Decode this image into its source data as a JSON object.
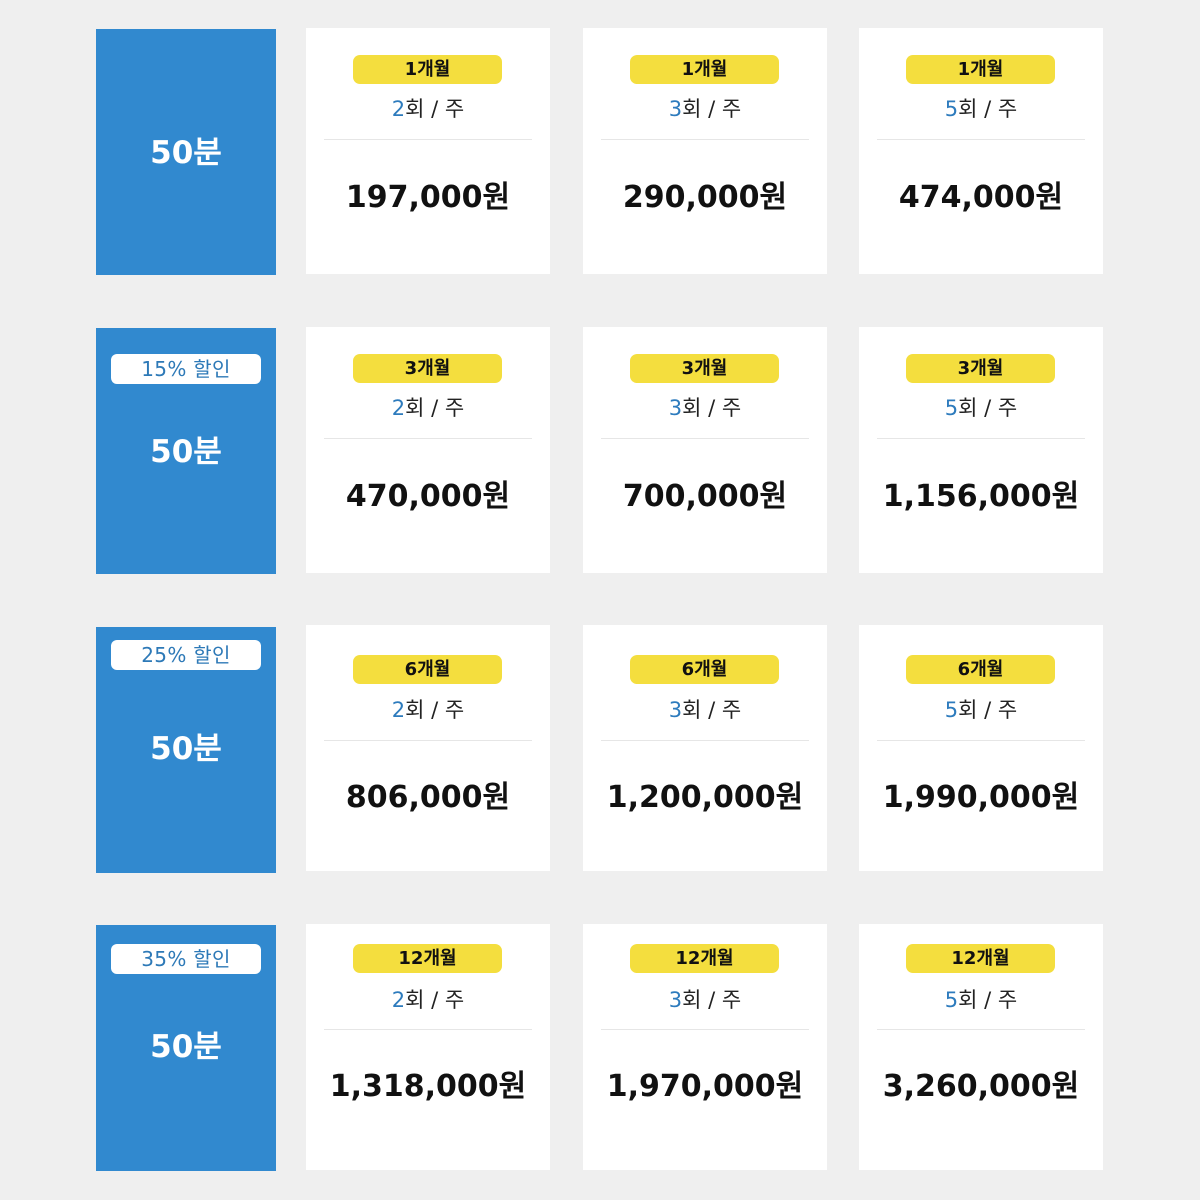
{
  "rows": [
    {
      "discount": "",
      "duration": "50분",
      "cards": [
        {
          "period": "1개월",
          "frequency_num": "2",
          "frequency_rest": "회 / 주",
          "price": "197,000원"
        },
        {
          "period": "1개월",
          "frequency_num": "3",
          "frequency_rest": "회 / 주",
          "price": "290,000원"
        },
        {
          "period": "1개월",
          "frequency_num": "5",
          "frequency_rest": "회 / 주",
          "price": "474,000원"
        }
      ]
    },
    {
      "discount": "15% 할인",
      "duration": "50분",
      "cards": [
        {
          "period": "3개월",
          "frequency_num": "2",
          "frequency_rest": "회 / 주",
          "price": "470,000원"
        },
        {
          "period": "3개월",
          "frequency_num": "3",
          "frequency_rest": "회 / 주",
          "price": "700,000원"
        },
        {
          "period": "3개월",
          "frequency_num": "5",
          "frequency_rest": "회 / 주",
          "price": "1,156,000원"
        }
      ]
    },
    {
      "discount": "25% 할인",
      "duration": "50분",
      "cards": [
        {
          "period": "6개월",
          "frequency_num": "2",
          "frequency_rest": "회 / 주",
          "price": "806,000원"
        },
        {
          "period": "6개월",
          "frequency_num": "3",
          "frequency_rest": "회 / 주",
          "price": "1,200,000원"
        },
        {
          "period": "6개월",
          "frequency_num": "5",
          "frequency_rest": "회 / 주",
          "price": "1,990,000원"
        }
      ]
    },
    {
      "discount": "35% 할인",
      "duration": "50분",
      "cards": [
        {
          "period": "12개월",
          "frequency_num": "2",
          "frequency_rest": "회 / 주",
          "price": "1,318,000원"
        },
        {
          "period": "12개월",
          "frequency_num": "3",
          "frequency_rest": "회 / 주",
          "price": "1,970,000원"
        },
        {
          "period": "12개월",
          "frequency_num": "5",
          "frequency_rest": "회 / 주",
          "price": "3,260,000원"
        }
      ]
    }
  ],
  "colors": {
    "tile_blue": "#3189cf",
    "pill_yellow": "#f4de3e",
    "accent_blue": "#2d7bbd",
    "page_background": "#efefef"
  }
}
